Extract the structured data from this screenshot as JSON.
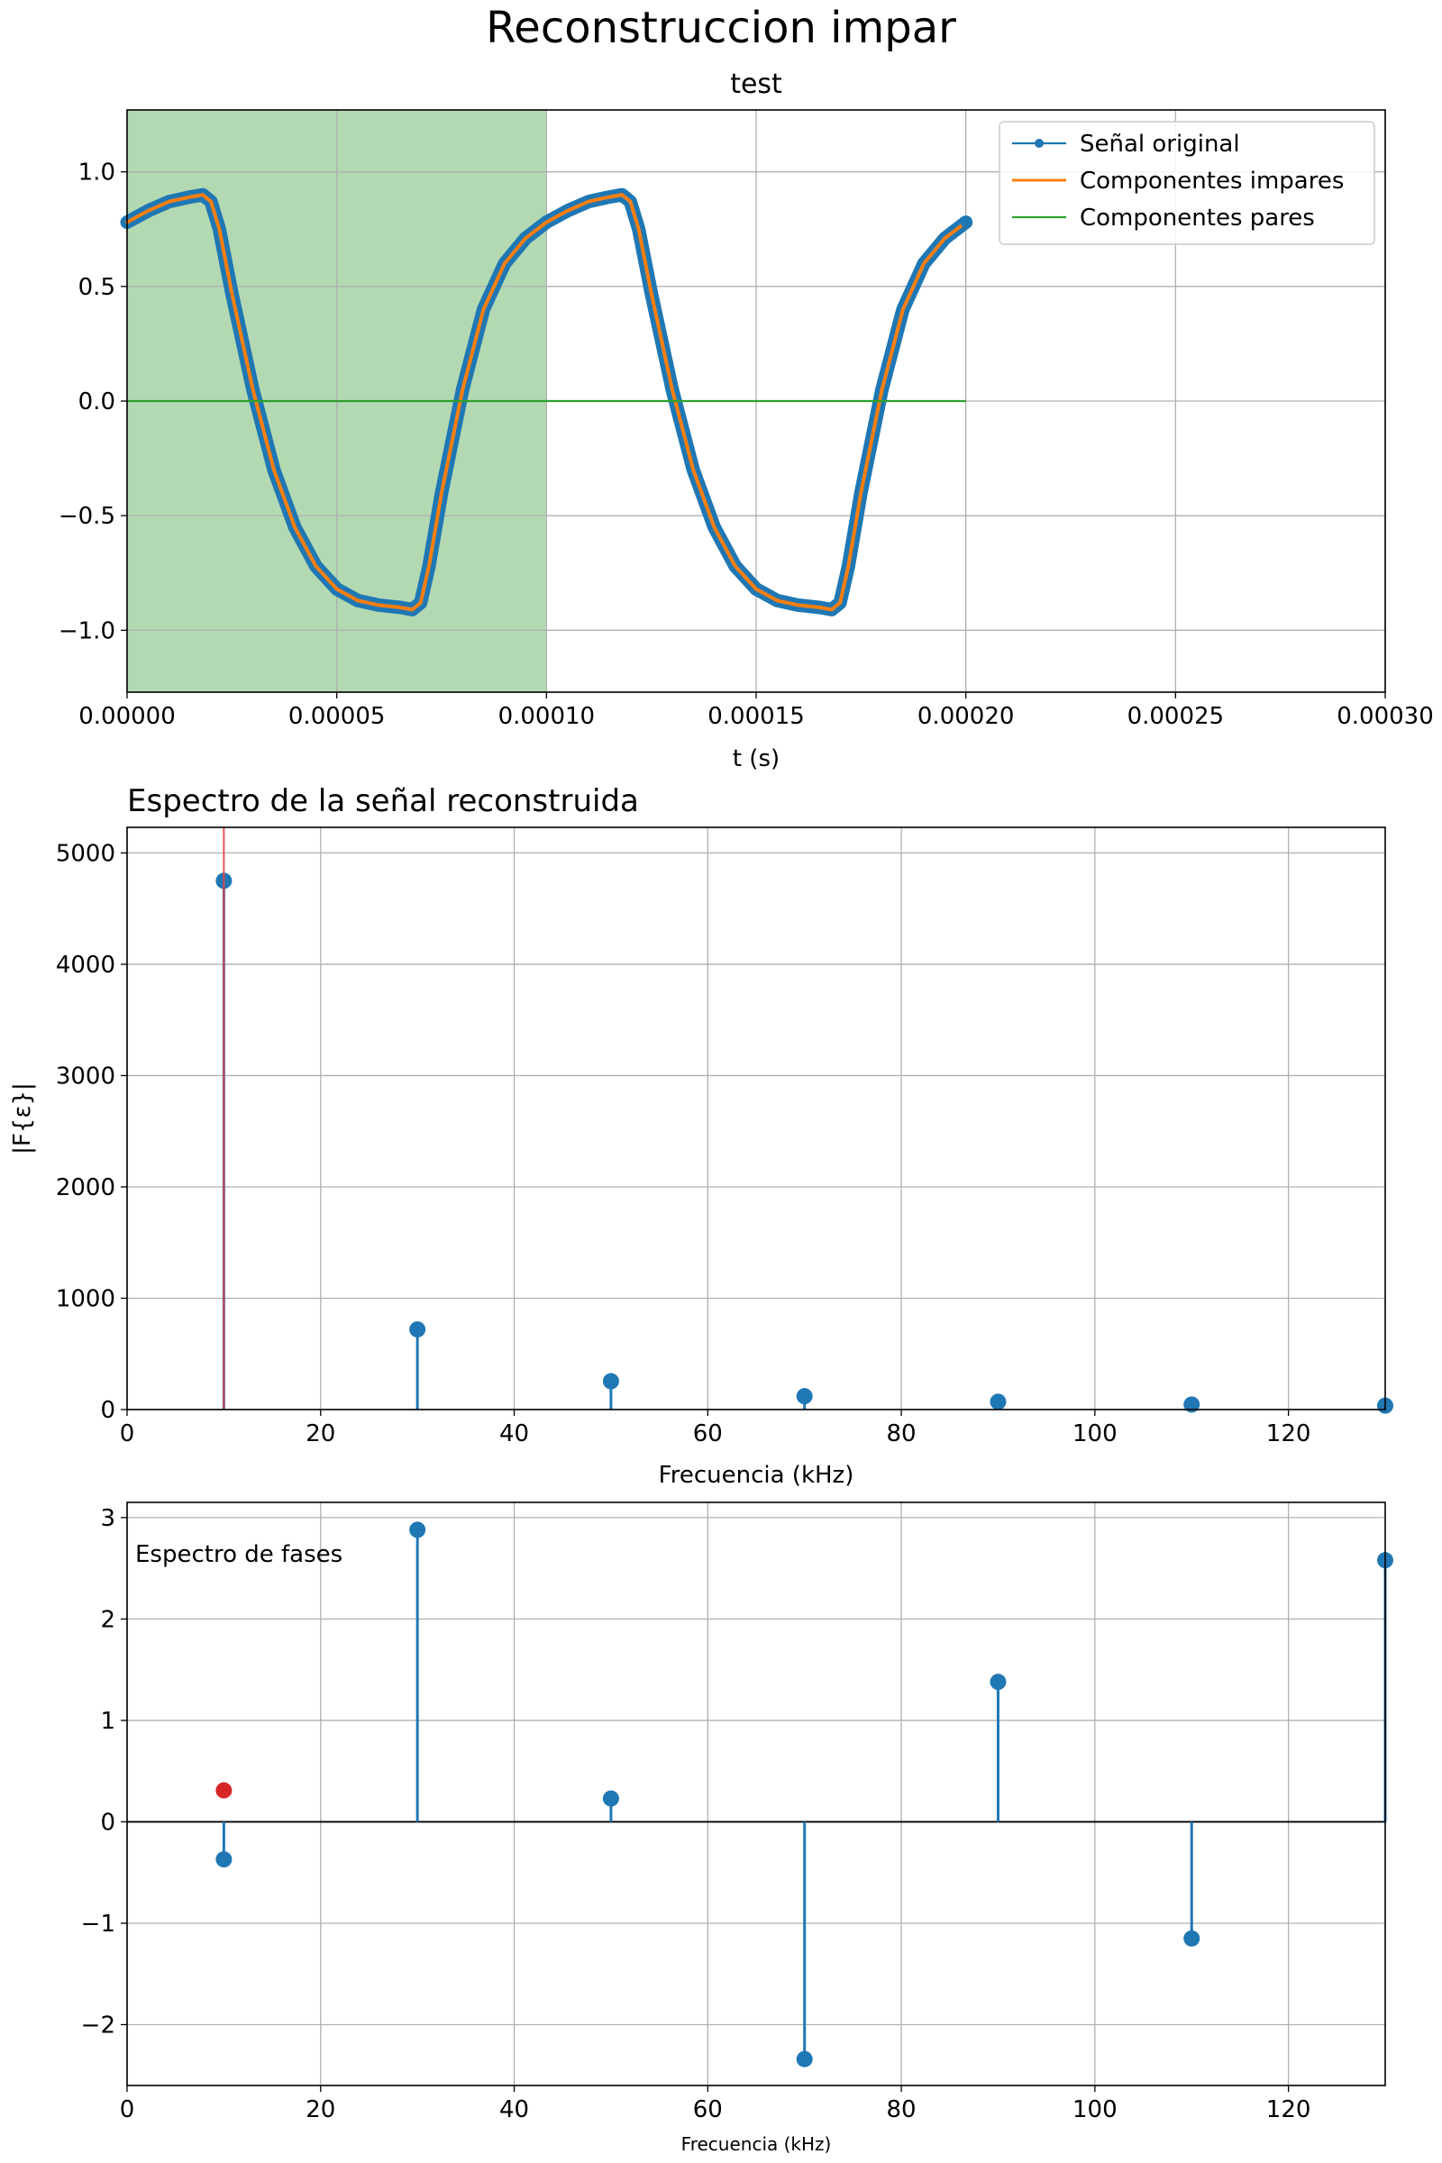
{
  "figure": {
    "suptitle": "Reconstruccion impar"
  },
  "colors": {
    "blue": "#1f77b4",
    "orange": "#ff7f0e",
    "green": "#2ca02c",
    "red": "#d62728",
    "red_line": "#e8424a",
    "shade": "#b3d9b3",
    "grid": "#b0b0b0"
  },
  "chart_data": [
    {
      "type": "line",
      "title": "test",
      "xlabel": "t (s)",
      "ylabel": "",
      "xlim": [
        0,
        0.0003
      ],
      "ylim": [
        -1.27,
        1.27
      ],
      "xticks": [
        0,
        5e-05,
        0.0001,
        0.00015,
        0.0002,
        0.00025,
        0.0003
      ],
      "xtick_labels": [
        "0.00000",
        "0.00005",
        "0.00010",
        "0.00015",
        "0.00020",
        "0.00025",
        "0.00030"
      ],
      "yticks": [
        -1.0,
        -0.5,
        0.0,
        0.5,
        1.0
      ],
      "ytick_labels": [
        "−1.0",
        "−0.5",
        "0.0",
        "0.5",
        "1.0"
      ],
      "shaded_x": [
        0,
        0.0001
      ],
      "grid": true,
      "legend_position": "top-right",
      "series": [
        {
          "name": "Señal original",
          "x": [
            0,
            5e-06,
            1e-05,
            1.5e-05,
            1.8e-05,
            2e-05,
            2.2e-05,
            2.5e-05,
            3e-05,
            3.5e-05,
            4e-05,
            4.5e-05,
            5e-05,
            5.5e-05,
            6e-05,
            6.5e-05,
            6.8e-05,
            7e-05,
            7.2e-05,
            7.5e-05,
            8e-05,
            8.5e-05,
            9e-05,
            9.5e-05,
            0.0001,
            0.000105,
            0.00011,
            0.000115,
            0.000118,
            0.00012,
            0.000122,
            0.000125,
            0.00013,
            0.000135,
            0.00014,
            0.000145,
            0.00015,
            0.000155,
            0.00016,
            0.000165,
            0.000168,
            0.00017,
            0.000172,
            0.000175,
            0.00018,
            0.000185,
            0.00019,
            0.000195,
            0.0002
          ],
          "y": [
            0.78,
            0.83,
            0.87,
            0.89,
            0.9,
            0.87,
            0.75,
            0.47,
            0.05,
            -0.3,
            -0.55,
            -0.72,
            -0.82,
            -0.87,
            -0.89,
            -0.9,
            -0.91,
            -0.88,
            -0.72,
            -0.4,
            0.05,
            0.4,
            0.6,
            0.71,
            0.78,
            0.83,
            0.87,
            0.89,
            0.9,
            0.87,
            0.75,
            0.47,
            0.05,
            -0.3,
            -0.55,
            -0.72,
            -0.82,
            -0.87,
            -0.89,
            -0.9,
            -0.91,
            -0.88,
            -0.72,
            -0.4,
            0.05,
            0.4,
            0.6,
            0.71,
            0.78
          ]
        },
        {
          "name": "Componentes impares",
          "x": [
            0,
            5e-06,
            1e-05,
            1.5e-05,
            1.8e-05,
            2e-05,
            2.2e-05,
            2.5e-05,
            3e-05,
            3.5e-05,
            4e-05,
            4.5e-05,
            5e-05,
            5.5e-05,
            6e-05,
            6.5e-05,
            6.8e-05,
            7e-05,
            7.2e-05,
            7.5e-05,
            8e-05,
            8.5e-05,
            9e-05,
            9.5e-05,
            0.0001,
            0.000105,
            0.00011,
            0.000115,
            0.000118,
            0.00012,
            0.000122,
            0.000125,
            0.00013,
            0.000135,
            0.00014,
            0.000145,
            0.00015,
            0.000155,
            0.00016,
            0.000165,
            0.000168,
            0.00017,
            0.000172,
            0.000175,
            0.00018,
            0.000185,
            0.00019,
            0.000195,
            0.0002
          ],
          "y": [
            0.78,
            0.83,
            0.87,
            0.89,
            0.9,
            0.87,
            0.75,
            0.47,
            0.05,
            -0.3,
            -0.55,
            -0.72,
            -0.82,
            -0.87,
            -0.89,
            -0.9,
            -0.91,
            -0.88,
            -0.72,
            -0.4,
            0.05,
            0.4,
            0.6,
            0.71,
            0.78,
            0.83,
            0.87,
            0.89,
            0.9,
            0.87,
            0.75,
            0.47,
            0.05,
            -0.3,
            -0.55,
            -0.72,
            -0.82,
            -0.87,
            -0.89,
            -0.9,
            -0.91,
            -0.88,
            -0.72,
            -0.4,
            0.05,
            0.4,
            0.6,
            0.71,
            0.78
          ]
        },
        {
          "name": "Componentes pares",
          "x": [
            0,
            0.0002
          ],
          "y": [
            0,
            0
          ]
        }
      ]
    },
    {
      "type": "stem",
      "title": "Espectro de la señal reconstruida",
      "xlabel": "Frecuencia (kHz)",
      "ylabel": "|F{ε}|",
      "xlim": [
        0,
        130
      ],
      "ylim": [
        0,
        5230
      ],
      "xticks": [
        0,
        20,
        40,
        60,
        80,
        100,
        120
      ],
      "yticks": [
        0,
        1000,
        2000,
        3000,
        4000,
        5000
      ],
      "grid": true,
      "vline_x": 10,
      "x": [
        10,
        30,
        50,
        70,
        90,
        110,
        130
      ],
      "values": [
        4750,
        720,
        255,
        120,
        70,
        45,
        35
      ]
    },
    {
      "type": "stem",
      "title": "",
      "annotation": "Espectro de fases",
      "xlabel": "Frecuencia (kHz)",
      "ylabel": "",
      "xlim": [
        0,
        130
      ],
      "ylim": [
        -2.6,
        3.15
      ],
      "xticks": [
        0,
        20,
        40,
        60,
        80,
        100,
        120
      ],
      "yticks": [
        -2,
        -1,
        0,
        1,
        2,
        3
      ],
      "ytick_labels": [
        "−2",
        "−1",
        "0",
        "1",
        "2",
        "3"
      ],
      "grid": true,
      "x": [
        10,
        30,
        50,
        70,
        90,
        110,
        130
      ],
      "values": [
        -0.37,
        2.88,
        0.23,
        -2.34,
        1.38,
        -1.15,
        2.58
      ],
      "highlight_point": {
        "x": 10,
        "y": 0.31
      }
    }
  ]
}
